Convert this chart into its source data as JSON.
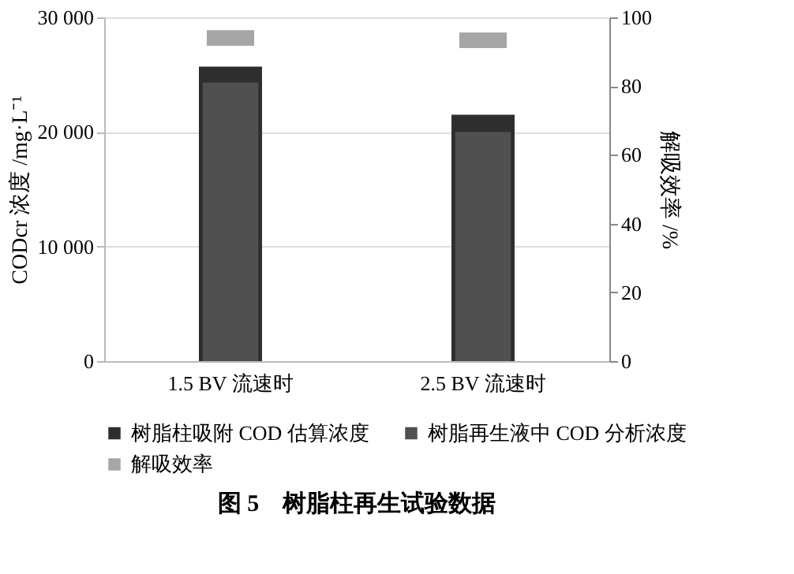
{
  "chart_data": {
    "type": "bar",
    "title": "图 5　树脂柱再生试验数据",
    "ylabel": "CODcr 浓度 /mg·L⁻¹",
    "y2label": "解吸效率 /%",
    "categories": [
      "1.5 BV 流速时",
      "2.5 BV 流速时"
    ],
    "series": [
      {
        "name": "树脂柱吸附 COD 估算浓度",
        "color": "#2e2e2e",
        "values": [
          25700,
          21500
        ]
      },
      {
        "name": "树脂再生液中 COD 分析浓度",
        "color": "#505050",
        "values": [
          24300,
          20000
        ]
      },
      {
        "name": "解吸效率",
        "color": "#a6a6a6",
        "type": "scatter",
        "axis": "y2",
        "values": [
          94,
          93.3
        ]
      }
    ],
    "ylim": [
      0,
      30000
    ],
    "yticks": [
      0,
      {
        "value": 10000,
        "label": "10 000"
      },
      {
        "value": 20000,
        "label": "20 000"
      },
      {
        "value": 30000,
        "label": "30 000"
      }
    ],
    "y2lim": [
      0,
      100
    ],
    "y2ticks": [
      0,
      20,
      40,
      60,
      80,
      100
    ],
    "grid": "y",
    "legend": "bottom"
  }
}
